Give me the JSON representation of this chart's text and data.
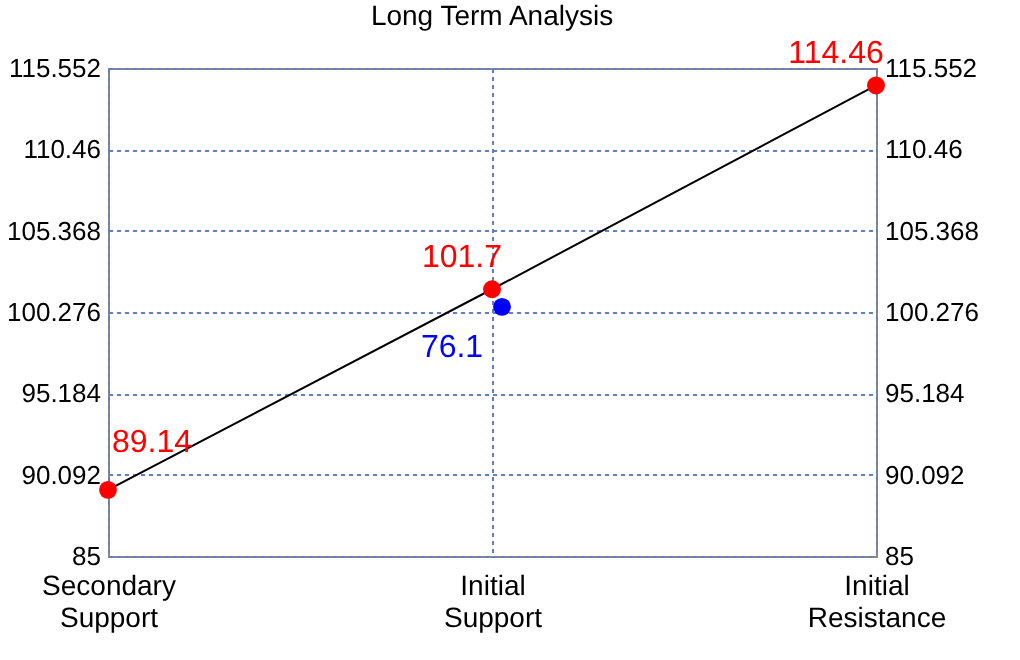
{
  "chart_data": {
    "type": "line",
    "title": "Long Term Analysis",
    "categories": [
      "Secondary Support",
      "Initial Support",
      "Initial Resistance"
    ],
    "series": [
      {
        "type": "line",
        "color": "#ff0000",
        "values": [
          89.14,
          101.7,
          114.46
        ],
        "value_labels": [
          "89.14",
          "101.7",
          "114.46"
        ]
      },
      {
        "type": "scatter",
        "color": "#0000ff",
        "values": [
          null,
          100.6,
          null
        ],
        "axis": "y2"
      }
    ],
    "annotations": [
      {
        "text": "76.1",
        "x": "Initial Support",
        "y": 100.6
      }
    ],
    "ylim": [
      85,
      115.552
    ],
    "yticks": [
      85,
      90.092,
      95.184,
      100.276,
      105.368,
      110.46,
      115.552
    ],
    "y2lim": [
      85,
      115.552
    ],
    "y2ticks": [
      85,
      90.092,
      95.184,
      100.276,
      105.368,
      110.46,
      115.552
    ],
    "grid": true,
    "marker": "circle",
    "line_style": "solid"
  }
}
